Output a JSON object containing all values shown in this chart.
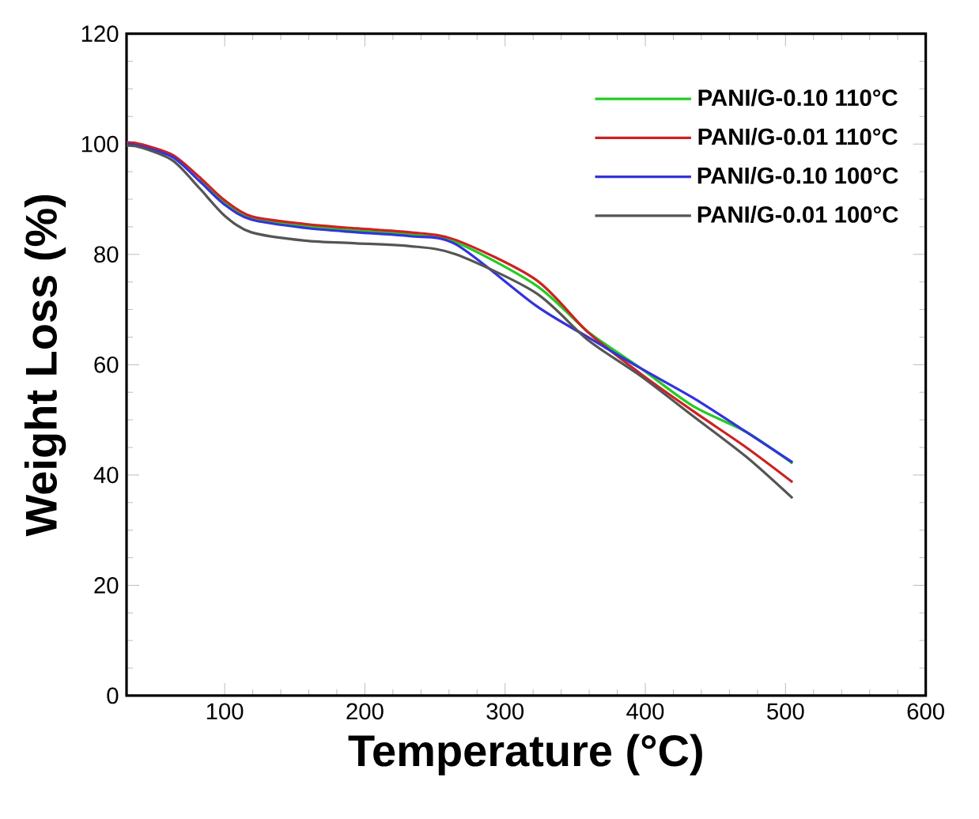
{
  "chart_data": {
    "type": "line",
    "xlabel": "Temperature (°C)",
    "ylabel": "Weight Loss (%)",
    "xlim": [
      30,
      600
    ],
    "ylim": [
      0,
      120
    ],
    "xticks": [
      100,
      200,
      300,
      400,
      500,
      600
    ],
    "yticks": [
      0,
      20,
      40,
      60,
      80,
      100,
      120
    ],
    "legend": "top right",
    "x": [
      30,
      40,
      63,
      82,
      100,
      119,
      157,
      194,
      232,
      265,
      322,
      359,
      397,
      434,
      472,
      505
    ],
    "series": [
      {
        "name": "PANI/G-0.10 110°C",
        "color": "#22cc22",
        "values": [
          null,
          null,
          null,
          93.6,
          89.3,
          86.5,
          85.1,
          84.3,
          83.6,
          82.2,
          74.4,
          66,
          59.3,
          52.5,
          47.8,
          42.1
        ]
      },
      {
        "name": "PANI/G-0.01 110°C",
        "color": "#cc2222",
        "values": [
          100.3,
          100,
          98,
          94,
          89.8,
          86.9,
          85.5,
          84.7,
          84,
          82.6,
          75.4,
          65.9,
          58.3,
          51.6,
          45,
          38.7
        ]
      },
      {
        "name": "PANI/G-0.10 100°C",
        "color": "#3333dd",
        "values": [
          100,
          99.6,
          97.6,
          93.3,
          89,
          86.3,
          84.8,
          84,
          83.3,
          81.8,
          70.7,
          65,
          59.3,
          54,
          47.8,
          42.3
        ]
      },
      {
        "name": "PANI/G-0.01 100°C",
        "color": "#555555",
        "values": [
          99.7,
          99.4,
          97,
          92,
          87,
          84,
          82.5,
          82,
          81.5,
          80,
          73,
          64.5,
          57.9,
          50.7,
          43.3,
          35.8
        ]
      }
    ]
  }
}
